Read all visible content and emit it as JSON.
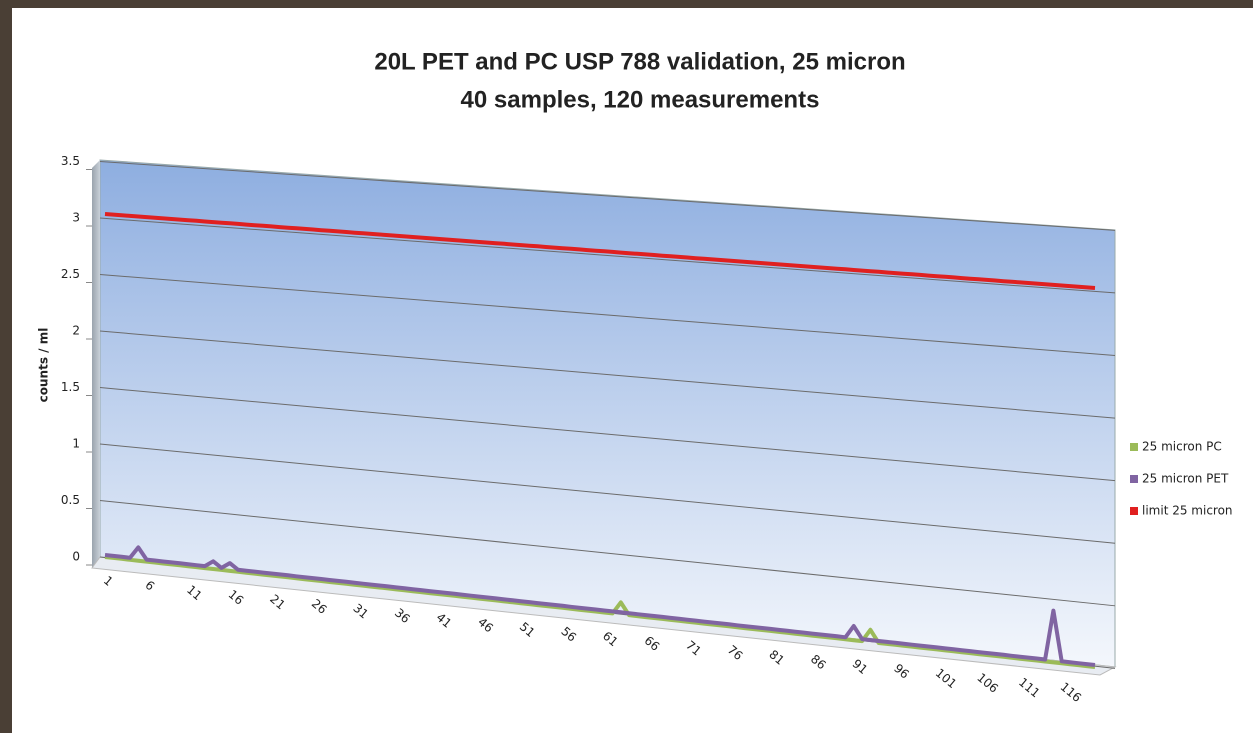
{
  "chart_data": {
    "type": "line",
    "title": "20L PET and PC USP 788 validation, 25 micron",
    "subtitle": "40 samples, 120 measurements",
    "y_label": "counts / ml",
    "x": [
      1,
      2,
      3,
      4,
      5,
      6,
      7,
      8,
      9,
      10,
      11,
      12,
      13,
      14,
      15,
      16,
      17,
      18,
      19,
      20,
      21,
      22,
      23,
      24,
      25,
      26,
      27,
      28,
      29,
      30,
      31,
      32,
      33,
      34,
      35,
      36,
      37,
      38,
      39,
      40,
      41,
      42,
      43,
      44,
      45,
      46,
      47,
      48,
      49,
      50,
      51,
      52,
      53,
      54,
      55,
      56,
      57,
      58,
      59,
      60,
      61,
      62,
      63,
      64,
      65,
      66,
      67,
      68,
      69,
      70,
      71,
      72,
      73,
      74,
      75,
      76,
      77,
      78,
      79,
      80,
      81,
      82,
      83,
      84,
      85,
      86,
      87,
      88,
      89,
      90,
      91,
      92,
      93,
      94,
      95,
      96,
      97,
      98,
      99,
      100,
      101,
      102,
      103,
      104,
      105,
      106,
      107,
      108,
      109,
      110,
      111,
      112,
      113,
      114,
      115,
      116,
      117,
      118,
      119,
      120
    ],
    "xlim": [
      1,
      120
    ],
    "xticks": [
      1,
      6,
      11,
      16,
      21,
      26,
      31,
      36,
      41,
      46,
      51,
      56,
      61,
      66,
      71,
      76,
      81,
      86,
      91,
      96,
      101,
      106,
      111,
      116
    ],
    "ylim": [
      0,
      3.5
    ],
    "yticks": [
      0,
      0.5,
      1,
      1.5,
      2,
      2.5,
      3,
      3.5
    ],
    "grid": true,
    "legend": "right",
    "series": [
      {
        "name": "25 micron PC",
        "color": "#9bbb59",
        "values": [
          0,
          0,
          0,
          0,
          0,
          0,
          0,
          0,
          0,
          0,
          0,
          0,
          0,
          0,
          0,
          0,
          0,
          0,
          0,
          0,
          0,
          0,
          0,
          0,
          0,
          0,
          0,
          0,
          0,
          0,
          0,
          0,
          0,
          0,
          0,
          0,
          0,
          0,
          0,
          0,
          0,
          0,
          0,
          0,
          0,
          0,
          0,
          0,
          0,
          0,
          0,
          0,
          0,
          0,
          0,
          0,
          0,
          0,
          0,
          0,
          0,
          0,
          0.1,
          0,
          0,
          0,
          0,
          0,
          0,
          0,
          0,
          0,
          0,
          0,
          0,
          0,
          0,
          0,
          0,
          0,
          0,
          0,
          0,
          0,
          0,
          0,
          0,
          0,
          0,
          0,
          0,
          0,
          0.1,
          0,
          0,
          0,
          0,
          0,
          0,
          0,
          0,
          0,
          0,
          0,
          0,
          0,
          0,
          0,
          0,
          0,
          0,
          0,
          0,
          0,
          0,
          0,
          0,
          0,
          0,
          0
        ]
      },
      {
        "name": "25 micron PET",
        "color": "#8064a2",
        "values": [
          0,
          0,
          0,
          0,
          0.1,
          0,
          0,
          0,
          0,
          0,
          0,
          0,
          0,
          0.05,
          0,
          0.05,
          0,
          0,
          0,
          0,
          0,
          0,
          0,
          0,
          0,
          0,
          0,
          0,
          0,
          0,
          0,
          0,
          0,
          0,
          0,
          0,
          0,
          0,
          0,
          0,
          0,
          0,
          0,
          0,
          0,
          0,
          0,
          0,
          0,
          0,
          0,
          0,
          0,
          0,
          0,
          0,
          0,
          0,
          0,
          0,
          0,
          0,
          0,
          0,
          0,
          0,
          0,
          0,
          0,
          0,
          0,
          0,
          0,
          0,
          0,
          0,
          0,
          0,
          0,
          0,
          0,
          0,
          0,
          0,
          0,
          0,
          0,
          0,
          0,
          0,
          0.1,
          0,
          0,
          0,
          0,
          0,
          0,
          0,
          0,
          0,
          0,
          0,
          0,
          0,
          0,
          0,
          0,
          0,
          0,
          0,
          0,
          0,
          0,
          0,
          0.4,
          0,
          0,
          0,
          0,
          0
        ]
      },
      {
        "name": "limit 25 micron",
        "color": "#e02020",
        "values": [
          3,
          3,
          3,
          3,
          3,
          3,
          3,
          3,
          3,
          3,
          3,
          3,
          3,
          3,
          3,
          3,
          3,
          3,
          3,
          3,
          3,
          3,
          3,
          3,
          3,
          3,
          3,
          3,
          3,
          3,
          3,
          3,
          3,
          3,
          3,
          3,
          3,
          3,
          3,
          3,
          3,
          3,
          3,
          3,
          3,
          3,
          3,
          3,
          3,
          3,
          3,
          3,
          3,
          3,
          3,
          3,
          3,
          3,
          3,
          3,
          3,
          3,
          3,
          3,
          3,
          3,
          3,
          3,
          3,
          3,
          3,
          3,
          3,
          3,
          3,
          3,
          3,
          3,
          3,
          3,
          3,
          3,
          3,
          3,
          3,
          3,
          3,
          3,
          3,
          3,
          3,
          3,
          3,
          3,
          3,
          3,
          3,
          3,
          3,
          3,
          3,
          3,
          3,
          3,
          3,
          3,
          3,
          3,
          3,
          3,
          3,
          3,
          3,
          3,
          3,
          3,
          3,
          3,
          3,
          3
        ]
      }
    ]
  }
}
